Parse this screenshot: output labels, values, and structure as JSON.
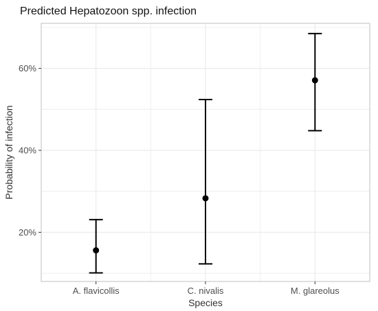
{
  "chart_data": {
    "type": "scatter",
    "title": "Predicted Hepatozoon spp. infection",
    "xlabel": "Species",
    "ylabel": "Probability of infection",
    "categories": [
      "A. flavicollis",
      "C. nivalis",
      "M. glareolus"
    ],
    "points": [
      {
        "category": "A. flavicollis",
        "estimate": 0.156,
        "lower": 0.101,
        "upper": 0.231
      },
      {
        "category": "C. nivalis",
        "estimate": 0.283,
        "lower": 0.123,
        "upper": 0.524
      },
      {
        "category": "M. glareolus",
        "estimate": 0.571,
        "lower": 0.448,
        "upper": 0.685
      }
    ],
    "ylim": [
      0.08,
      0.71
    ],
    "y_ticks": [
      0.2,
      0.4,
      0.6
    ],
    "y_tick_labels": [
      "20%",
      "40%",
      "60%"
    ],
    "y_axis_format": "percent",
    "grid": true,
    "legend": "none",
    "colors": {
      "point": "#000000",
      "errorbar": "#000000",
      "grid": "#ebebeb",
      "panel_border": "#bfbfbf",
      "axis_text": "#4d4d4d"
    }
  }
}
